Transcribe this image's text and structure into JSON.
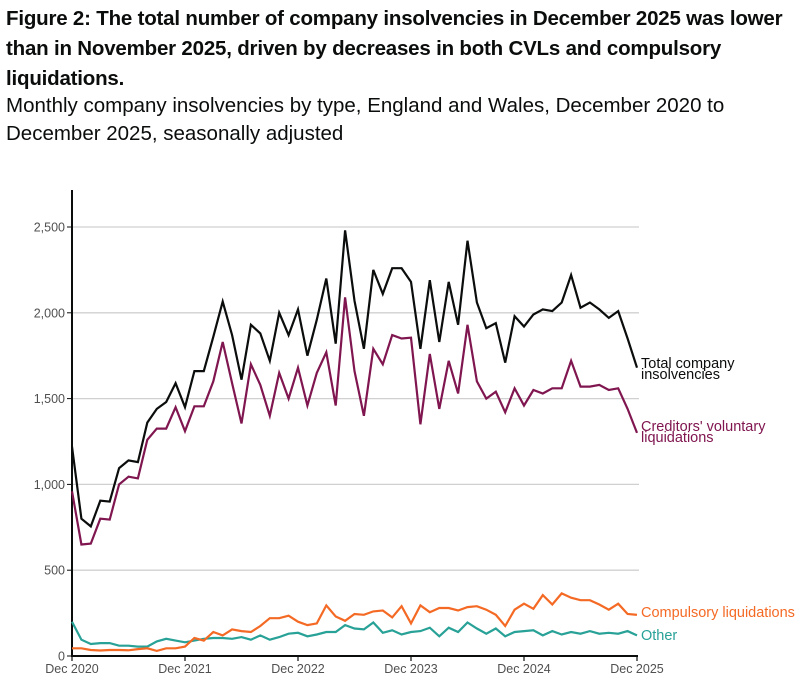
{
  "figure": {
    "title": "Figure 2: The total number of company insolvencies in December 2025 was lower than in November 2025, driven by decreases in both CVLs and compulsory liquidations.",
    "subtitle": "Monthly company insolvencies by type, England and Wales, December 2020 to December 2025, seasonally adjusted"
  },
  "chart_data": {
    "type": "line",
    "title": "Monthly company insolvencies by type, England and Wales, December 2020 to December 2025, seasonally adjusted",
    "xlabel": "",
    "ylabel": "",
    "ylim": [
      0,
      2700
    ],
    "yticks": [
      0,
      500,
      1000,
      1500,
      2000,
      2500
    ],
    "ytick_labels": [
      "0",
      "500",
      "1,000",
      "1,500",
      "2,000",
      "2,500"
    ],
    "x_start": "Dec 2020",
    "x_end": "Dec 2025",
    "n_months": 61,
    "xticks": [
      0,
      12,
      24,
      36,
      48,
      60
    ],
    "xtick_labels": [
      "Dec 2020",
      "Dec 2021",
      "Dec 2022",
      "Dec 2023",
      "Dec 2024",
      "Dec 2025"
    ],
    "grid": "horizontal",
    "legend": "direct-labels-right",
    "series": [
      {
        "name": "Total company insolvencies",
        "label_lines": [
          "Total company",
          "insolvencies"
        ],
        "color": "#0b0c0c",
        "values": [
          1220,
          800,
          755,
          905,
          900,
          1095,
          1140,
          1130,
          1360,
          1440,
          1480,
          1590,
          1450,
          1660,
          1660,
          1860,
          2065,
          1870,
          1610,
          1930,
          1880,
          1720,
          2000,
          1870,
          2020,
          1750,
          1960,
          2200,
          1820,
          2480,
          2070,
          1790,
          2250,
          2110,
          2260,
          2260,
          2180,
          1790,
          2190,
          1830,
          2180,
          1930,
          2420,
          2060,
          1910,
          1940,
          1710,
          1980,
          1920,
          1990,
          2020,
          2010,
          2060,
          2220,
          2030,
          2060,
          2020,
          1970,
          2010,
          1850,
          1680
        ]
      },
      {
        "name": "Creditors' voluntary liquidations",
        "label_lines": [
          "Creditors' voluntary",
          "liquidations"
        ],
        "color": "#801650",
        "values": [
          960,
          650,
          655,
          800,
          795,
          1000,
          1045,
          1035,
          1260,
          1325,
          1325,
          1450,
          1310,
          1455,
          1455,
          1600,
          1830,
          1590,
          1355,
          1700,
          1580,
          1400,
          1650,
          1500,
          1680,
          1460,
          1650,
          1770,
          1460,
          2090,
          1660,
          1400,
          1790,
          1700,
          1870,
          1850,
          1855,
          1350,
          1760,
          1440,
          1720,
          1530,
          1930,
          1600,
          1500,
          1540,
          1420,
          1560,
          1460,
          1550,
          1530,
          1560,
          1560,
          1720,
          1570,
          1570,
          1580,
          1550,
          1560,
          1440,
          1300
        ]
      },
      {
        "name": "Compulsory liquidations",
        "label_lines": [
          "Compulsory liquidations"
        ],
        "color": "#f46a25",
        "values": [
          45,
          45,
          35,
          32,
          35,
          35,
          33,
          40,
          45,
          30,
          45,
          45,
          55,
          105,
          90,
          140,
          120,
          155,
          145,
          140,
          175,
          220,
          220,
          235,
          200,
          180,
          190,
          295,
          230,
          205,
          245,
          240,
          260,
          265,
          225,
          290,
          190,
          295,
          255,
          280,
          280,
          265,
          285,
          290,
          270,
          240,
          175,
          270,
          305,
          275,
          355,
          300,
          365,
          340,
          325,
          325,
          300,
          270,
          305,
          245,
          240
        ]
      },
      {
        "name": "Other",
        "label_lines": [
          "Other"
        ],
        "color": "#28a197",
        "values": [
          200,
          95,
          70,
          75,
          75,
          60,
          60,
          55,
          55,
          85,
          100,
          90,
          80,
          90,
          100,
          105,
          105,
          100,
          110,
          95,
          120,
          95,
          110,
          130,
          135,
          115,
          125,
          140,
          140,
          180,
          160,
          155,
          195,
          135,
          150,
          125,
          140,
          145,
          165,
          115,
          165,
          140,
          195,
          160,
          130,
          160,
          115,
          140,
          145,
          150,
          120,
          145,
          125,
          140,
          130,
          145,
          130,
          135,
          130,
          145,
          120
        ]
      }
    ]
  }
}
